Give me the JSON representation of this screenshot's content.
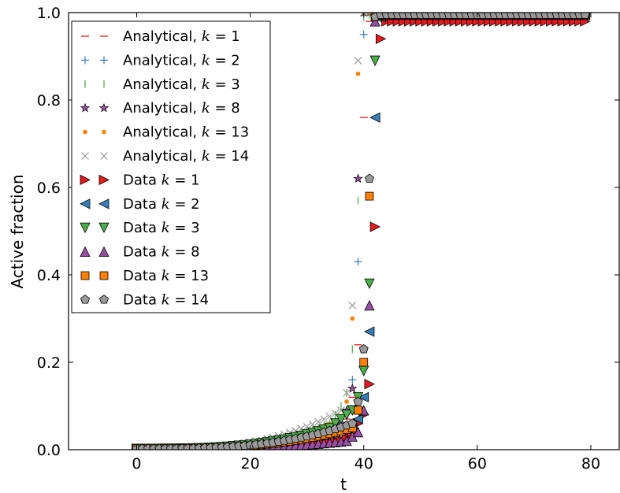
{
  "chart_data": {
    "type": "scatter",
    "xlabel": "t",
    "ylabel": "Active fraction",
    "xlim": [
      -12,
      85
    ],
    "ylim": [
      0,
      1.0
    ],
    "x_ticks": [
      "0",
      "20",
      "40",
      "60",
      "80"
    ],
    "y_ticks": [
      "0.0",
      "0.2",
      "0.4",
      "0.6",
      "0.8",
      "1.0"
    ],
    "grid": false,
    "legend_position": "top-left",
    "series": [
      {
        "name": "Analytical, k = 1",
        "label_prefix": "Analytical, ",
        "label_k": "1",
        "marker": "hline",
        "color": "#e41a1c",
        "x_start": 0,
        "t_jump": 43,
        "k": 1
      },
      {
        "name": "Analytical, k = 2",
        "label_prefix": "Analytical, ",
        "label_k": "2",
        "marker": "plus",
        "color": "#377eb8",
        "x_start": 0,
        "t_jump": 41,
        "k": 2
      },
      {
        "name": "Analytical, k = 3",
        "label_prefix": "Analytical, ",
        "label_k": "3",
        "marker": "vline",
        "color": "#4daf4a",
        "x_start": 0,
        "t_jump": 40,
        "k": 3
      },
      {
        "name": "Analytical, k = 8",
        "label_prefix": "Analytical, ",
        "label_k": "8",
        "marker": "star",
        "color": "#984ea3",
        "x_start": 0,
        "t_jump": 40,
        "k": 8
      },
      {
        "name": "Analytical, k = 13",
        "label_prefix": "Analytical, ",
        "label_k": "13",
        "marker": "dot",
        "color": "#ff7f00",
        "x_start": 0,
        "t_jump": 40,
        "k": 13
      },
      {
        "name": "Analytical, k = 14",
        "label_prefix": "Analytical, ",
        "label_k": "14",
        "marker": "x",
        "color": "#999999",
        "x_start": 0,
        "t_jump": 40,
        "k": 14
      },
      {
        "name": "Data k = 1",
        "label_prefix": "Data ",
        "label_k": "1",
        "marker": "tri-right",
        "color": "#e41a1c",
        "x_start": 0,
        "t_jump": 43,
        "k": 1
      },
      {
        "name": "Data k = 2",
        "label_prefix": "Data ",
        "label_k": "2",
        "marker": "tri-left",
        "color": "#377eb8",
        "x_start": 0,
        "t_jump": 42,
        "k": 2
      },
      {
        "name": "Data k = 3",
        "label_prefix": "Data ",
        "label_k": "3",
        "marker": "tri-down",
        "color": "#4daf4a",
        "x_start": 0,
        "t_jump": 42,
        "k": 3
      },
      {
        "name": "Data k = 8",
        "label_prefix": "Data ",
        "label_k": "8",
        "marker": "tri-up",
        "color": "#984ea3",
        "x_start": 0,
        "t_jump": 41,
        "k": 8
      },
      {
        "name": "Data k = 13",
        "label_prefix": "Data ",
        "label_k": "13",
        "marker": "square",
        "color": "#ff7f00",
        "x_start": 0,
        "t_jump": 41,
        "k": 13
      },
      {
        "name": "Data k = 14",
        "label_prefix": "Data ",
        "label_k": "14",
        "marker": "pentagon",
        "color": "#999999",
        "x_start": 0,
        "t_jump": 41,
        "k": 14
      }
    ],
    "points": {
      "Analytical, k = 1": [
        [
          35,
          0.02
        ],
        [
          36,
          0.04
        ],
        [
          37,
          0.07
        ],
        [
          38,
          0.12
        ],
        [
          39,
          0.24
        ],
        [
          40,
          0.76
        ],
        [
          41,
          0.98
        ],
        [
          42,
          0.99
        ]
      ],
      "Analytical, k = 2": [
        [
          35,
          0.05
        ],
        [
          36,
          0.07
        ],
        [
          37,
          0.09
        ],
        [
          38,
          0.16
        ],
        [
          39,
          0.43
        ],
        [
          40,
          0.95
        ],
        [
          41,
          1.0
        ]
      ],
      "Analytical, k = 3": [
        [
          34,
          0.06
        ],
        [
          35,
          0.08
        ],
        [
          36,
          0.1
        ],
        [
          37,
          0.13
        ],
        [
          38,
          0.23
        ],
        [
          39,
          0.57
        ],
        [
          40,
          0.99
        ]
      ],
      "Analytical, k = 8": [
        [
          36,
          0.06
        ],
        [
          37,
          0.09
        ],
        [
          38,
          0.14
        ],
        [
          39,
          0.62
        ],
        [
          40,
          1.0
        ]
      ],
      "Analytical, k = 13": [
        [
          36,
          0.07
        ],
        [
          37,
          0.11
        ],
        [
          38,
          0.3
        ],
        [
          39,
          0.86
        ],
        [
          40,
          1.0
        ]
      ],
      "Analytical, k = 14": [
        [
          36,
          0.09
        ],
        [
          37,
          0.13
        ],
        [
          38,
          0.33
        ],
        [
          39,
          0.89
        ],
        [
          40,
          1.0
        ]
      ],
      "Data k = 1": [
        [
          36,
          0.02
        ],
        [
          37,
          0.03
        ],
        [
          38,
          0.04
        ],
        [
          39,
          0.06
        ],
        [
          40,
          0.08
        ],
        [
          41,
          0.15
        ],
        [
          42,
          0.51
        ],
        [
          43,
          0.94
        ],
        [
          44,
          0.98
        ]
      ],
      "Data k = 2": [
        [
          38,
          0.05
        ],
        [
          39,
          0.07
        ],
        [
          40,
          0.12
        ],
        [
          41,
          0.27
        ],
        [
          42,
          0.76
        ],
        [
          43,
          0.99
        ]
      ],
      "Data k = 3": [
        [
          34,
          0.05
        ],
        [
          35,
          0.06
        ],
        [
          36,
          0.07
        ],
        [
          37,
          0.08
        ],
        [
          38,
          0.09
        ],
        [
          39,
          0.12
        ],
        [
          40,
          0.18
        ],
        [
          41,
          0.38
        ],
        [
          42,
          0.89
        ],
        [
          43,
          0.99
        ]
      ],
      "Data k = 8": [
        [
          37,
          0.02
        ],
        [
          38,
          0.03
        ],
        [
          39,
          0.04
        ],
        [
          40,
          0.09
        ],
        [
          41,
          0.33
        ],
        [
          42,
          0.98
        ]
      ],
      "Data k = 13": [
        [
          38,
          0.05
        ],
        [
          39,
          0.09
        ],
        [
          40,
          0.2
        ],
        [
          41,
          0.58
        ],
        [
          42,
          0.99
        ]
      ],
      "Data k = 14": [
        [
          38,
          0.06
        ],
        [
          39,
          0.11
        ],
        [
          40,
          0.23
        ],
        [
          41,
          0.62
        ],
        [
          42,
          0.99
        ]
      ]
    }
  }
}
